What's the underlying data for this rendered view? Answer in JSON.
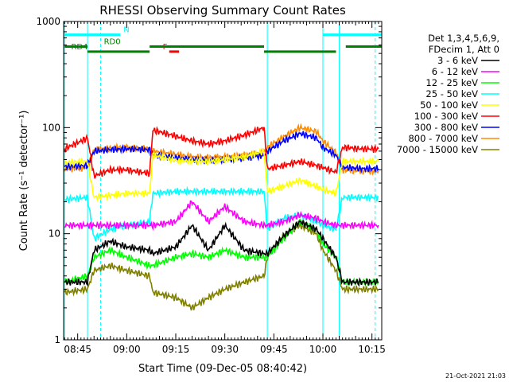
{
  "chart_data": {
    "type": "line",
    "title": "RHESSI Observing Summary Count Rates",
    "xlabel": "Start Time (09-Dec-05 08:40:42)",
    "ylabel": "Count Rate (s⁻¹ detector⁻¹)",
    "ylim": [
      1,
      1000
    ],
    "yscale": "log",
    "xlim": [
      "08:40:42",
      "10:18:00"
    ],
    "x_ticks": [
      "08:45",
      "09:00",
      "09:15",
      "09:30",
      "09:45",
      "10:00",
      "10:15"
    ],
    "y_ticks": [
      "1",
      "10",
      "100",
      "1000"
    ],
    "grid": false,
    "legend_position": "right",
    "legend_header": [
      "Det 1,3,4,5,6,9,",
      "FDecim 1, Att 0"
    ],
    "timestamp": "21-Oct-2021 21:03",
    "x": [
      "08:41",
      "08:48",
      "08:50",
      "08:55",
      "09:00",
      "09:07",
      "09:08",
      "09:15",
      "09:20",
      "09:25",
      "09:30",
      "09:36",
      "09:42",
      "09:43",
      "09:48",
      "09:53",
      "09:58",
      "10:00",
      "10:04",
      "10:06",
      "10:07",
      "10:12",
      "10:17"
    ],
    "series": [
      {
        "name": "3 - 6 keV",
        "color": "#000000",
        "values": [
          3.5,
          3.5,
          7,
          8.5,
          7.5,
          7,
          6.5,
          7.5,
          12,
          7,
          12,
          7,
          6.5,
          6.5,
          9.5,
          13,
          11,
          9,
          6,
          3.5,
          3.5,
          3.5,
          3.5
        ]
      },
      {
        "name": "6 - 12 keV",
        "color": "#ff00ff",
        "values": [
          12,
          12,
          12,
          12,
          12,
          12,
          12,
          13,
          20,
          13,
          18,
          13,
          12,
          12,
          13,
          15,
          14,
          13,
          12,
          12,
          12,
          12,
          12
        ]
      },
      {
        "name": "12 - 25 keV",
        "color": "#00ff00",
        "values": [
          3.5,
          4,
          6,
          7,
          6,
          5,
          5,
          6,
          6.5,
          6,
          7,
          6,
          6,
          6,
          9,
          13,
          11,
          8,
          6,
          3.5,
          3.5,
          3.5,
          3.5
        ]
      },
      {
        "name": "25 - 50 keV",
        "color": "#00ffff",
        "values": [
          21,
          22,
          9,
          11,
          12,
          13,
          24,
          25,
          25,
          25,
          25,
          25,
          25,
          11,
          14,
          15,
          13,
          12,
          11,
          22,
          22,
          22,
          22
        ]
      },
      {
        "name": "50 - 100 keV",
        "color": "#ffff00",
        "values": [
          47,
          48,
          22,
          23,
          24,
          24,
          55,
          49,
          48,
          48,
          50,
          53,
          60,
          25,
          28,
          32,
          28,
          26,
          24,
          48,
          48,
          48,
          48
        ]
      },
      {
        "name": "100 - 300 keV",
        "color": "#ff0000",
        "values": [
          63,
          80,
          35,
          40,
          40,
          37,
          95,
          83,
          75,
          70,
          75,
          85,
          100,
          41,
          44,
          48,
          44,
          42,
          38,
          65,
          65,
          63,
          63
        ]
      },
      {
        "name": "300 - 800 keV",
        "color": "#0000ff",
        "values": [
          43,
          44,
          60,
          62,
          63,
          62,
          55,
          52,
          50,
          49,
          50,
          52,
          55,
          60,
          75,
          88,
          80,
          65,
          55,
          42,
          42,
          41,
          41
        ]
      },
      {
        "name": "800 - 7000 keV",
        "color": "#ff8c00",
        "values": [
          41,
          42,
          62,
          64,
          65,
          63,
          60,
          56,
          53,
          52,
          53,
          55,
          58,
          65,
          82,
          100,
          92,
          75,
          58,
          40,
          40,
          39,
          39
        ]
      },
      {
        "name": "7000 - 15000 keV",
        "color": "#808000",
        "values": [
          2.8,
          3,
          4.5,
          5,
          4.5,
          4,
          2.8,
          2.5,
          2,
          2.5,
          3,
          3.5,
          4,
          6,
          9.5,
          12,
          10,
          7,
          4.5,
          3,
          3,
          3,
          3
        ]
      }
    ],
    "attenuator_bars": [
      {
        "label": "N",
        "color": "#00ffff",
        "level": 750,
        "label_at": "08:59",
        "segments": [
          [
            "08:41",
            "08:58"
          ],
          [
            "10:00",
            "10:18"
          ]
        ]
      },
      {
        "label": "F",
        "color": "#ff0000",
        "level": 520,
        "label_at": "09:11",
        "segments": [
          [
            "09:13",
            "09:16"
          ]
        ]
      },
      {
        "label": "RD0",
        "color": "#008000",
        "level": 580,
        "label_at": "08:53",
        "segments": [
          [
            "08:41",
            "08:48"
          ],
          [
            "09:07",
            "09:42"
          ],
          [
            "10:07",
            "10:18"
          ]
        ]
      },
      {
        "label": "RD4",
        "color": "#008000",
        "level": 520,
        "label_at": "08:43",
        "segments": [
          [
            "08:48",
            "09:07"
          ],
          [
            "09:42",
            "10:04"
          ]
        ]
      }
    ],
    "vertical_markers": [
      {
        "at": "08:41",
        "color": "#00ffff",
        "style": "solid"
      },
      {
        "at": "08:48",
        "color": "#00ffff",
        "style": "solid"
      },
      {
        "at": "08:52",
        "color": "#00ffff",
        "style": "dashed"
      },
      {
        "at": "09:43",
        "color": "#00ffff",
        "style": "solid"
      },
      {
        "at": "10:00",
        "color": "#00ffff",
        "style": "solid"
      },
      {
        "at": "10:05",
        "color": "#00ffff",
        "style": "solid"
      },
      {
        "at": "10:16",
        "color": "#00ffff",
        "style": "dashed"
      }
    ]
  }
}
